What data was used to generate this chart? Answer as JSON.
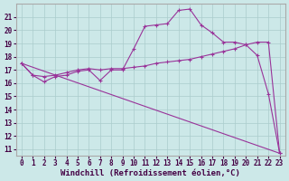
{
  "x_vals": [
    0,
    1,
    2,
    3,
    4,
    5,
    6,
    7,
    8,
    9,
    10,
    11,
    12,
    13,
    14,
    15,
    16,
    17,
    18,
    19,
    20,
    21,
    22,
    23
  ],
  "line_wavy": [
    17.5,
    16.6,
    16.1,
    16.5,
    16.6,
    16.9,
    17.0,
    16.2,
    17.0,
    17.0,
    18.6,
    20.3,
    20.4,
    20.5,
    21.5,
    21.6,
    20.4,
    19.8,
    19.1,
    19.1,
    18.9,
    18.1,
    15.2,
    10.7
  ],
  "line_rising": [
    17.5,
    16.6,
    16.5,
    16.6,
    16.8,
    17.0,
    17.1,
    17.0,
    17.1,
    17.1,
    17.2,
    17.3,
    17.5,
    17.6,
    17.7,
    17.8,
    18.0,
    18.2,
    18.4,
    18.6,
    18.9,
    19.1,
    19.1,
    10.7
  ],
  "line_color": "#993399",
  "bg_color": "#cce8e8",
  "grid_color": "#aacccc",
  "xlabel": "Windchill (Refroidissement éolien,°C)",
  "ylim": [
    10.5,
    22.0
  ],
  "xlim": [
    -0.5,
    23.5
  ],
  "yticks": [
    11,
    12,
    13,
    14,
    15,
    16,
    17,
    18,
    19,
    20,
    21
  ],
  "xticks": [
    0,
    1,
    2,
    3,
    4,
    5,
    6,
    7,
    8,
    9,
    10,
    11,
    12,
    13,
    14,
    15,
    16,
    17,
    18,
    19,
    20,
    21,
    22,
    23
  ],
  "marker": "+",
  "markersize": 3,
  "linewidth": 0.8,
  "xlabel_fontsize": 6.5,
  "tick_fontsize": 5.5
}
